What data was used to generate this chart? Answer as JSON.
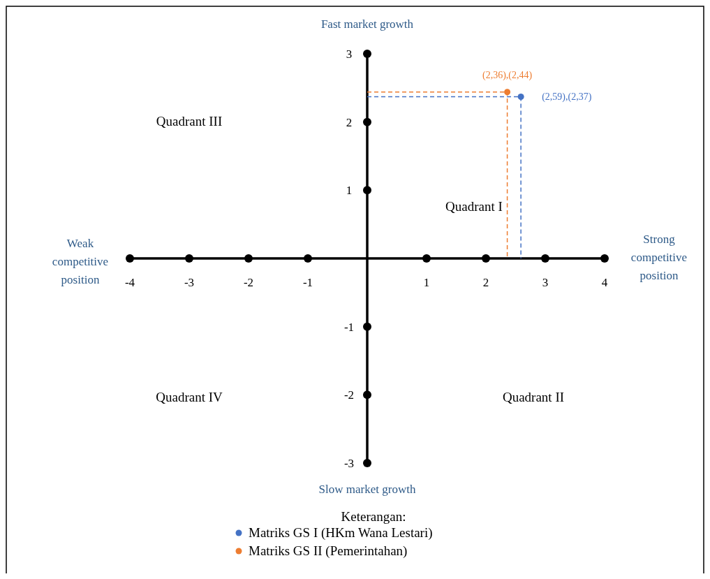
{
  "chart_data": {
    "type": "scatter",
    "xlim": [
      -4,
      4
    ],
    "ylim": [
      -3,
      3
    ],
    "xticks": [
      -4,
      -3,
      -2,
      -1,
      1,
      2,
      3,
      4
    ],
    "yticks": [
      -3,
      -2,
      -1,
      1,
      2,
      3
    ],
    "series": [
      {
        "name": "Matriks GS I (HKm Wana Lestari)",
        "color": "#4472c4",
        "x": [
          2.59
        ],
        "values": [
          2.37
        ]
      },
      {
        "name": "Matriks GS II (Pemerintahan)",
        "color": "#ed7d31",
        "x": [
          2.36
        ],
        "values": [
          2.44
        ]
      }
    ],
    "annotations": [
      {
        "text": "(2,59),(2,37)",
        "x": 2.59,
        "y": 2.37
      },
      {
        "text": "(2,36),(2,44)",
        "x": 2.36,
        "y": 2.44
      },
      "Quadrant I",
      "Quadrant II",
      "Quadrant III",
      "Quadrant IV",
      "Fast market growth",
      "Slow market growth",
      "Weak competitive position",
      "Strong competitive position"
    ],
    "legend_title": "Keterangan:",
    "legend": "bottom",
    "marker": "circle",
    "grid": false
  }
}
